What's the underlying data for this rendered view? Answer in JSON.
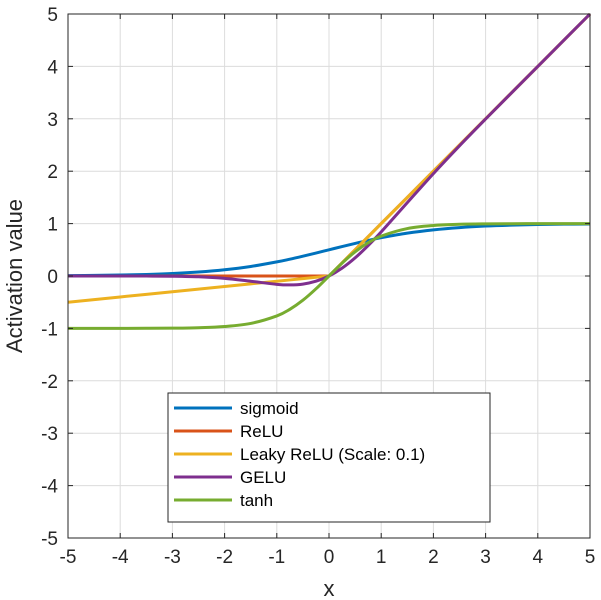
{
  "chart_data": {
    "type": "line",
    "title": "",
    "xlabel": "x",
    "ylabel": "Activation value",
    "xlim": [
      -5,
      5
    ],
    "ylim": [
      -5,
      5
    ],
    "xticks": [
      -5,
      -4,
      -3,
      -2,
      -1,
      0,
      1,
      2,
      3,
      4,
      5
    ],
    "yticks": [
      -5,
      -4,
      -3,
      -2,
      -1,
      0,
      1,
      2,
      3,
      4,
      5
    ],
    "xtick_labels": [
      "-5",
      "-4",
      "-3",
      "-2",
      "-1",
      "0",
      "1",
      "2",
      "3",
      "4",
      "5"
    ],
    "ytick_labels": [
      "-5",
      "-4",
      "-3",
      "-2",
      "-1",
      "0",
      "1",
      "2",
      "3",
      "4",
      "5"
    ],
    "grid": true,
    "legend_position": "bottom-center",
    "x": [
      -5,
      -4.5,
      -4,
      -3.5,
      -3,
      -2.5,
      -2,
      -1.5,
      -1,
      -0.75,
      -0.5,
      -0.25,
      0,
      0.25,
      0.5,
      0.75,
      1,
      1.5,
      2,
      2.5,
      3,
      3.5,
      4,
      4.5,
      5
    ],
    "series": [
      {
        "name": "sigmoid",
        "color": "#0072BD",
        "values": [
          0.007,
          0.011,
          0.018,
          0.029,
          0.047,
          0.076,
          0.119,
          0.182,
          0.269,
          0.321,
          0.378,
          0.438,
          0.5,
          0.562,
          0.622,
          0.679,
          0.731,
          0.818,
          0.881,
          0.924,
          0.953,
          0.971,
          0.982,
          0.989,
          0.993
        ]
      },
      {
        "name": "ReLU",
        "color": "#D95319",
        "values": [
          0,
          0,
          0,
          0,
          0,
          0,
          0,
          0,
          0,
          0,
          0,
          0,
          0,
          0.25,
          0.5,
          0.75,
          1,
          1.5,
          2,
          2.5,
          3,
          3.5,
          4,
          4.5,
          5
        ]
      },
      {
        "name": "Leaky ReLU (Scale: 0.1)",
        "color": "#EDB120",
        "values": [
          -0.5,
          -0.45,
          -0.4,
          -0.35,
          -0.3,
          -0.25,
          -0.2,
          -0.15,
          -0.1,
          -0.075,
          -0.05,
          -0.025,
          0,
          0.25,
          0.5,
          0.75,
          1,
          1.5,
          2,
          2.5,
          3,
          3.5,
          4,
          4.5,
          5
        ]
      },
      {
        "name": "GELU",
        "color": "#7E2F8E",
        "values": [
          0,
          0,
          -0.0001,
          -0.0008,
          -0.004,
          -0.0155,
          -0.0455,
          -0.1002,
          -0.1587,
          -0.17,
          -0.1543,
          -0.0998,
          0,
          0.1498,
          0.3457,
          0.58,
          0.8413,
          1.3998,
          1.9545,
          2.4845,
          2.996,
          3.4992,
          3.9999,
          4.5,
          5
        ]
      },
      {
        "name": "tanh",
        "color": "#77AC30",
        "values": [
          -1.0,
          -0.9998,
          -0.9993,
          -0.9982,
          -0.9951,
          -0.9866,
          -0.964,
          -0.9051,
          -0.7616,
          -0.6351,
          -0.4621,
          -0.2449,
          0,
          0.2449,
          0.4621,
          0.6351,
          0.7616,
          0.9051,
          0.964,
          0.9866,
          0.9951,
          0.9982,
          0.9993,
          0.9998,
          1.0
        ]
      }
    ]
  }
}
